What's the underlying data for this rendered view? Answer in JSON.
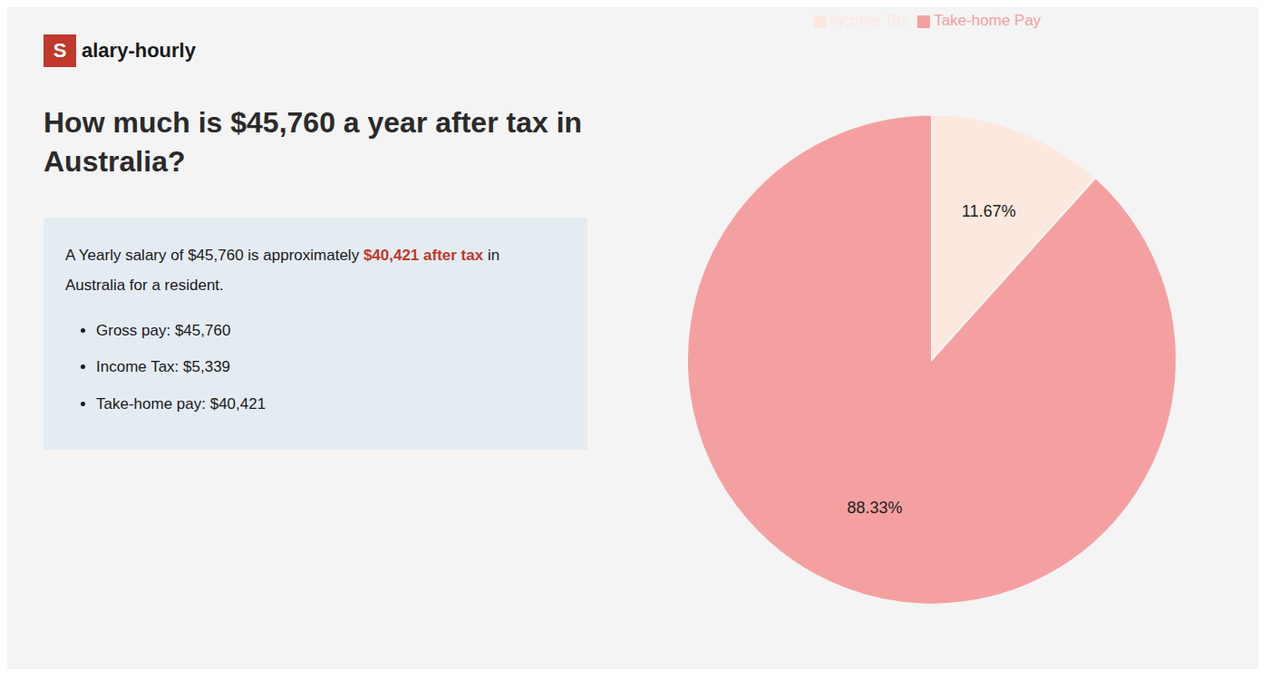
{
  "chart_data": {
    "type": "pie",
    "title": "How much is $45,760 a year after tax in\nAustralia?",
    "categories": [
      "Income Tax",
      "Take-home Pay"
    ],
    "values": [
      11.67,
      88.33
    ],
    "value_labels": [
      "11.67%",
      "88.33%"
    ],
    "colors": [
      "#fde8df",
      "#f5a0a0"
    ],
    "data_labels": true,
    "legend": "top",
    "annotations": [
      "S",
      "alary-hourly",
      "A Yearly salary of $45,760 is approximately ",
      "$40,421 after tax",
      " in",
      "Australia for a resident.",
      "Gross pay: $45,760",
      "Income Tax: $5,339",
      "Take-home pay: $40,421"
    ]
  }
}
